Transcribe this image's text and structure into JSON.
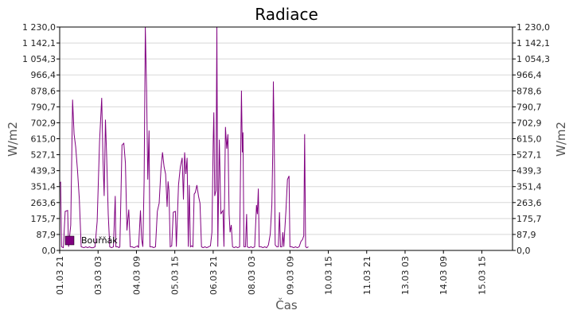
{
  "chart_data": {
    "type": "line",
    "title": "Radiace",
    "xlabel": "Čas",
    "ylabel_left": "W/m2",
    "ylabel_right": "W/m2",
    "ylim": [
      0,
      1230
    ],
    "y_ticks": [
      "0,0",
      "87,9",
      "175,7",
      "263,6",
      "351,4",
      "439,3",
      "527,1",
      "615,0",
      "702,9",
      "790,7",
      "878,6",
      "966,4",
      "1 054,3",
      "1 142,1",
      "1 230,0"
    ],
    "y_tick_values": [
      0,
      87.9,
      175.7,
      263.6,
      351.4,
      439.3,
      527.1,
      615.0,
      702.9,
      790.7,
      878.6,
      966.4,
      1054.3,
      1142.1,
      1230.0
    ],
    "xlim": [
      0,
      14.75
    ],
    "x_ticks": [
      {
        "label": "01.03 21",
        "day": 0
      },
      {
        "label": "03.03 03",
        "day": 1.25
      },
      {
        "label": "04.03 09",
        "day": 2.5
      },
      {
        "label": "05.03 15",
        "day": 3.75
      },
      {
        "label": "06.03 21",
        "day": 5
      },
      {
        "label": "08.03 03",
        "day": 6.25
      },
      {
        "label": "09.03 09",
        "day": 7.5
      },
      {
        "label": "10.03 15",
        "day": 8.75
      },
      {
        "label": "11.03 21",
        "day": 10
      },
      {
        "label": "13.03 03",
        "day": 11.25
      },
      {
        "label": "14.03 09",
        "day": 12.5
      },
      {
        "label": "15.03 15",
        "day": 13.75
      }
    ],
    "grid": "horizontal",
    "legend_position": "bottom-left",
    "series": [
      {
        "name": "Bouřňák",
        "color": "#800080",
        "points": [
          [
            0.0,
            370
          ],
          [
            0.03,
            375
          ],
          [
            0.06,
            20
          ],
          [
            0.12,
            15
          ],
          [
            0.18,
            215
          ],
          [
            0.26,
            220
          ],
          [
            0.29,
            20
          ],
          [
            0.36,
            140
          ],
          [
            0.42,
            830
          ],
          [
            0.47,
            640
          ],
          [
            0.52,
            570
          ],
          [
            0.58,
            440
          ],
          [
            0.64,
            280
          ],
          [
            0.7,
            20
          ],
          [
            0.79,
            15
          ],
          [
            0.85,
            20
          ],
          [
            0.91,
            15
          ],
          [
            0.97,
            20
          ],
          [
            1.03,
            15
          ],
          [
            1.09,
            15
          ],
          [
            1.15,
            20
          ],
          [
            1.22,
            160
          ],
          [
            1.3,
            600
          ],
          [
            1.37,
            840
          ],
          [
            1.41,
            500
          ],
          [
            1.45,
            300
          ],
          [
            1.49,
            720
          ],
          [
            1.53,
            520
          ],
          [
            1.58,
            200
          ],
          [
            1.63,
            20
          ],
          [
            1.69,
            15
          ],
          [
            1.75,
            20
          ],
          [
            1.81,
            300
          ],
          [
            1.83,
            20
          ],
          [
            1.89,
            20
          ],
          [
            1.93,
            15
          ],
          [
            1.96,
            20
          ],
          [
            2.03,
            580
          ],
          [
            2.09,
            590
          ],
          [
            2.14,
            480
          ],
          [
            2.19,
            110
          ],
          [
            2.25,
            225
          ],
          [
            2.3,
            20
          ],
          [
            2.36,
            20
          ],
          [
            2.42,
            15
          ],
          [
            2.48,
            20
          ],
          [
            2.54,
            25
          ],
          [
            2.57,
            15
          ],
          [
            2.63,
            220
          ],
          [
            2.67,
            60
          ],
          [
            2.71,
            20
          ],
          [
            2.75,
            380
          ],
          [
            2.79,
            1230
          ],
          [
            2.83,
            880
          ],
          [
            2.87,
            390
          ],
          [
            2.91,
            660
          ],
          [
            2.94,
            20
          ],
          [
            3.01,
            20
          ],
          [
            3.06,
            15
          ],
          [
            3.12,
            20
          ],
          [
            3.18,
            215
          ],
          [
            3.24,
            260
          ],
          [
            3.3,
            450
          ],
          [
            3.35,
            540
          ],
          [
            3.4,
            460
          ],
          [
            3.45,
            420
          ],
          [
            3.5,
            240
          ],
          [
            3.53,
            380
          ],
          [
            3.56,
            330
          ],
          [
            3.6,
            20
          ],
          [
            3.65,
            25
          ],
          [
            3.7,
            210
          ],
          [
            3.77,
            215
          ],
          [
            3.8,
            20
          ],
          [
            3.87,
            360
          ],
          [
            3.93,
            460
          ],
          [
            3.99,
            510
          ],
          [
            4.03,
            280
          ],
          [
            4.07,
            540
          ],
          [
            4.11,
            420
          ],
          [
            4.15,
            510
          ],
          [
            4.19,
            20
          ],
          [
            4.22,
            360
          ],
          [
            4.26,
            20
          ],
          [
            4.3,
            25
          ],
          [
            4.34,
            20
          ],
          [
            4.38,
            310
          ],
          [
            4.42,
            320
          ],
          [
            4.47,
            360
          ],
          [
            4.52,
            300
          ],
          [
            4.57,
            260
          ],
          [
            4.62,
            20
          ],
          [
            4.67,
            15
          ],
          [
            4.73,
            20
          ],
          [
            4.79,
            15
          ],
          [
            4.85,
            20
          ],
          [
            4.91,
            25
          ],
          [
            4.96,
            100
          ],
          [
            5.0,
            600
          ],
          [
            5.02,
            760
          ],
          [
            5.05,
            300
          ],
          [
            5.09,
            330
          ],
          [
            5.12,
            1230
          ],
          [
            5.15,
            20
          ],
          [
            5.2,
            610
          ],
          [
            5.25,
            200
          ],
          [
            5.28,
            210
          ],
          [
            5.32,
            220
          ],
          [
            5.35,
            20
          ],
          [
            5.4,
            680
          ],
          [
            5.44,
            560
          ],
          [
            5.48,
            640
          ],
          [
            5.52,
            200
          ],
          [
            5.55,
            100
          ],
          [
            5.59,
            140
          ],
          [
            5.63,
            20
          ],
          [
            5.68,
            15
          ],
          [
            5.74,
            20
          ],
          [
            5.8,
            15
          ],
          [
            5.86,
            20
          ],
          [
            5.92,
            880
          ],
          [
            5.95,
            540
          ],
          [
            5.97,
            650
          ],
          [
            6.0,
            20
          ],
          [
            6.05,
            20
          ],
          [
            6.09,
            200
          ],
          [
            6.11,
            20
          ],
          [
            6.17,
            15
          ],
          [
            6.23,
            20
          ],
          [
            6.29,
            15
          ],
          [
            6.35,
            20
          ],
          [
            6.41,
            250
          ],
          [
            6.44,
            200
          ],
          [
            6.47,
            340
          ],
          [
            6.5,
            20
          ],
          [
            6.56,
            20
          ],
          [
            6.62,
            15
          ],
          [
            6.68,
            20
          ],
          [
            6.74,
            15
          ],
          [
            6.8,
            30
          ],
          [
            6.86,
            90
          ],
          [
            6.91,
            250
          ],
          [
            6.94,
            530
          ],
          [
            6.96,
            930
          ],
          [
            6.99,
            600
          ],
          [
            7.02,
            30
          ],
          [
            7.07,
            20
          ],
          [
            7.12,
            20
          ],
          [
            7.16,
            210
          ],
          [
            7.19,
            20
          ],
          [
            7.24,
            20
          ],
          [
            7.27,
            100
          ],
          [
            7.3,
            20
          ],
          [
            7.37,
            220
          ],
          [
            7.42,
            390
          ],
          [
            7.47,
            410
          ],
          [
            7.5,
            20
          ],
          [
            7.56,
            20
          ],
          [
            7.62,
            15
          ],
          [
            7.68,
            20
          ],
          [
            7.74,
            15
          ],
          [
            7.8,
            20
          ],
          [
            7.86,
            50
          ],
          [
            7.91,
            60
          ],
          [
            7.95,
            80
          ],
          [
            7.98,
            640
          ],
          [
            8.01,
            20
          ],
          [
            8.05,
            15
          ],
          [
            8.1,
            20
          ]
        ]
      }
    ]
  }
}
